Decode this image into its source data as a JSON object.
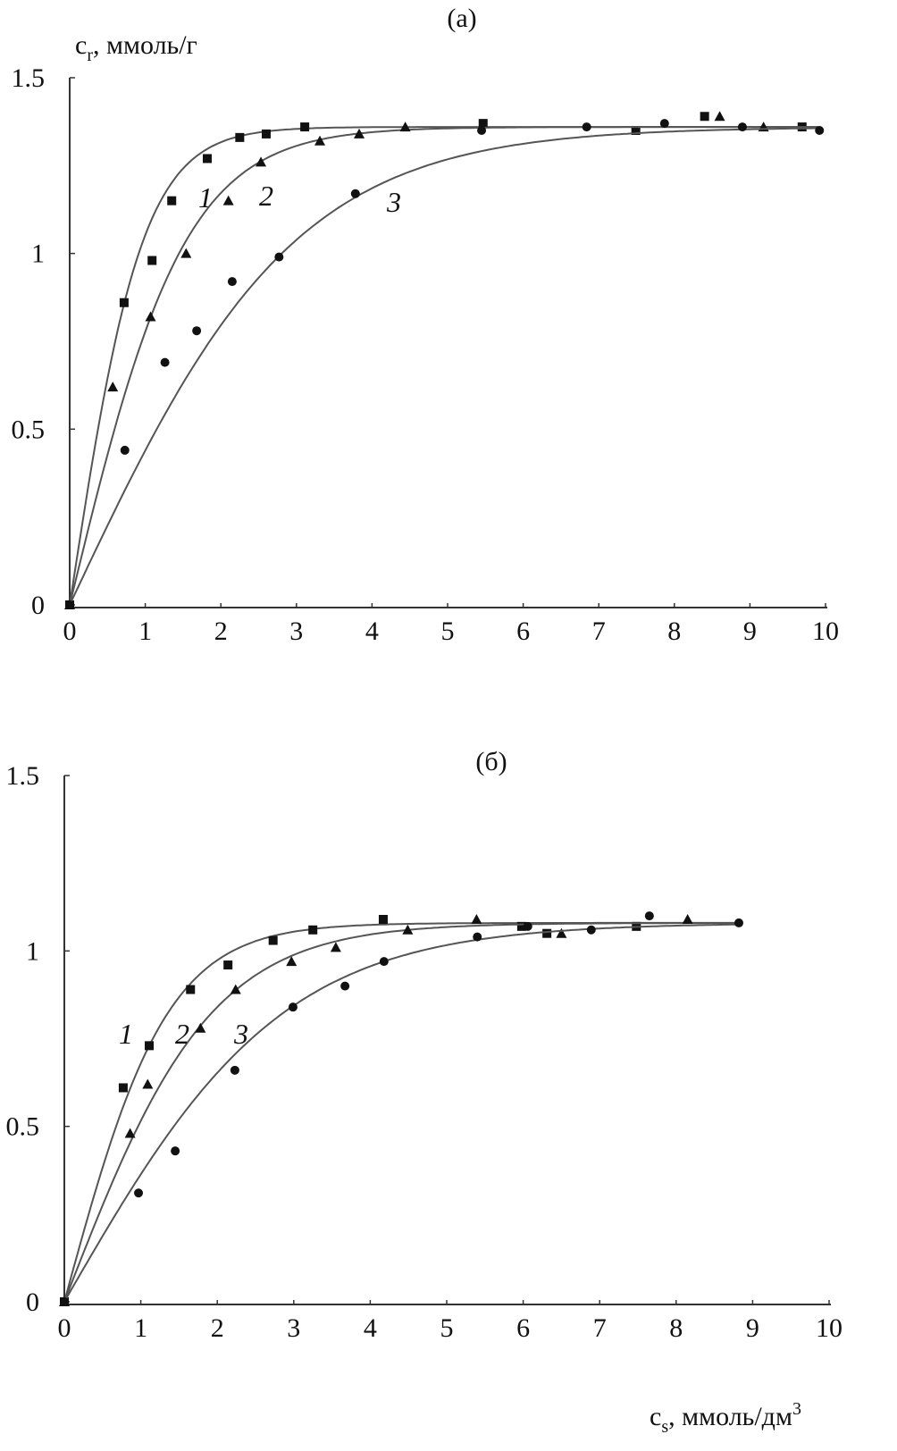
{
  "chart_data": [
    {
      "type": "scatter",
      "title": "(a)",
      "xlabel": "",
      "ylabel": {
        "main": "c",
        "sub": "r",
        "unit": ", ммоль/г"
      },
      "xlim": [
        0,
        10
      ],
      "ylim": [
        0,
        1.5
      ],
      "xticks": [
        "0",
        "1",
        "2",
        "3",
        "4",
        "5",
        "6",
        "7",
        "8",
        "9",
        "10"
      ],
      "yticks": [
        "0",
        "0.5",
        "1",
        "1.5"
      ],
      "grid": false,
      "marker_color": "#111111",
      "line_color": "#555555",
      "series": [
        {
          "name": "1",
          "marker": "square",
          "x": [
            0,
            0.72,
            1.09,
            1.35,
            1.82,
            2.25,
            2.6,
            3.11,
            5.47,
            7.49,
            8.4,
            9.69
          ],
          "y": [
            0,
            0.86,
            0.98,
            1.15,
            1.27,
            1.33,
            1.34,
            1.36,
            1.37,
            1.35,
            1.39,
            1.36
          ]
        },
        {
          "name": "2",
          "marker": "triangle",
          "x": [
            0,
            0.57,
            1.07,
            1.54,
            2.1,
            2.53,
            3.31,
            3.83,
            4.44,
            8.6,
            9.18
          ],
          "y": [
            0,
            0.62,
            0.82,
            1.0,
            1.15,
            1.26,
            1.32,
            1.34,
            1.36,
            1.39,
            1.36
          ]
        },
        {
          "name": "3",
          "marker": "circle",
          "x": [
            0,
            0.73,
            1.26,
            1.68,
            2.15,
            2.77,
            3.78,
            5.45,
            6.84,
            7.87,
            8.9,
            9.92
          ],
          "y": [
            0,
            0.44,
            0.69,
            0.78,
            0.92,
            0.99,
            1.17,
            1.35,
            1.36,
            1.37,
            1.36,
            1.35
          ]
        }
      ]
    },
    {
      "type": "scatter",
      "title": "(б)",
      "xlabel": {
        "main": "c",
        "sub": "s",
        "unit": ", ммоль/дм",
        "sup": "3"
      },
      "ylabel": "",
      "xlim": [
        0,
        10
      ],
      "ylim": [
        0,
        1.5
      ],
      "xticks": [
        "0",
        "1",
        "2",
        "3",
        "4",
        "5",
        "6",
        "7",
        "8",
        "9",
        "10"
      ],
      "yticks": [
        "0",
        "0.5",
        "1",
        "1.5"
      ],
      "grid": false,
      "marker_color": "#111111",
      "line_color": "#555555",
      "series": [
        {
          "name": "1",
          "marker": "square",
          "x": [
            0,
            0.77,
            1.11,
            1.65,
            2.14,
            2.73,
            3.25,
            4.17,
            5.98,
            6.31,
            7.48
          ],
          "y": [
            0,
            0.61,
            0.73,
            0.89,
            0.96,
            1.03,
            1.06,
            1.09,
            1.07,
            1.05,
            1.07
          ]
        },
        {
          "name": "2",
          "marker": "triangle",
          "x": [
            0,
            0.86,
            1.09,
            1.78,
            2.24,
            2.97,
            3.55,
            4.49,
            5.39,
            6.5,
            8.15
          ],
          "y": [
            0,
            0.48,
            0.62,
            0.78,
            0.89,
            0.97,
            1.01,
            1.06,
            1.09,
            1.05,
            1.09
          ]
        },
        {
          "name": "3",
          "marker": "circle",
          "x": [
            0,
            0.97,
            1.45,
            2.23,
            2.99,
            3.67,
            4.18,
            5.4,
            6.06,
            6.89,
            7.65,
            8.82
          ],
          "y": [
            0,
            0.31,
            0.43,
            0.66,
            0.84,
            0.9,
            0.97,
            1.04,
            1.07,
            1.06,
            1.1,
            1.08
          ]
        }
      ]
    }
  ]
}
